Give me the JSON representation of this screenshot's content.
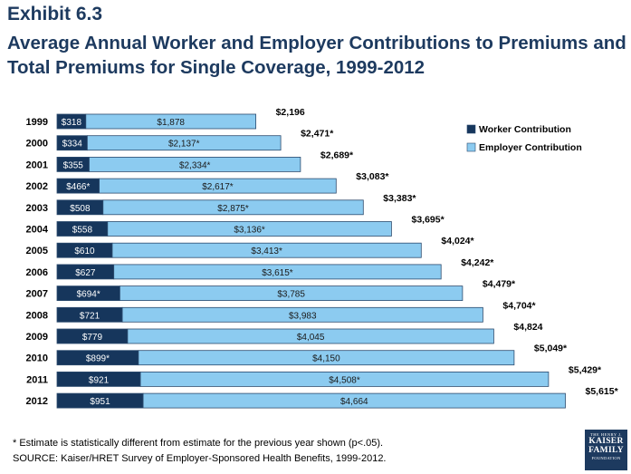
{
  "header": {
    "exhibit": "Exhibit 6.3",
    "title": "Average Annual Worker and Employer Contributions to Premiums and Total Premiums for Single Coverage, 1999-2012"
  },
  "footer": {
    "note": "* Estimate is statistically different from estimate for the previous year shown (p<.05).",
    "source": "SOURCE:  Kaiser/HRET Survey of Employer-Sponsored Health Benefits, 1999-2012."
  },
  "logo": {
    "line1": "THE HENRY J.",
    "line2a": "KAISER",
    "line2b": "FAMILY",
    "line3": "FOUNDATION"
  },
  "colors": {
    "worker": "#16365c",
    "employer": "#8ccbf0",
    "bar_outline": "#2c4b6e"
  },
  "chart_data": {
    "type": "bar",
    "orientation": "horizontal",
    "stacked": true,
    "categories": [
      "1999",
      "2000",
      "2001",
      "2002",
      "2003",
      "2004",
      "2005",
      "2006",
      "2007",
      "2008",
      "2009",
      "2010",
      "2011",
      "2012"
    ],
    "series": [
      {
        "name": "Worker Contribution",
        "values": [
          318,
          334,
          355,
          466,
          508,
          558,
          610,
          627,
          694,
          721,
          779,
          899,
          921,
          951
        ],
        "labels": [
          "$318",
          "$334",
          "$355",
          "$466*",
          "$508",
          "$558",
          "$610",
          "$627",
          "$694*",
          "$721",
          "$779",
          "$899*",
          "$921",
          "$951"
        ]
      },
      {
        "name": "Employer Contribution",
        "values": [
          1878,
          2137,
          2334,
          2617,
          2875,
          3136,
          3413,
          3615,
          3785,
          3983,
          4045,
          4150,
          4508,
          4664
        ],
        "labels": [
          "$1,878",
          "$2,137*",
          "$2,334*",
          "$2,617*",
          "$2,875*",
          "$3,136*",
          "$3,413*",
          "$3,615*",
          "$3,785",
          "$3,983",
          "$4,045",
          "$4,150",
          "$4,508*",
          "$4,664"
        ]
      }
    ],
    "totals": [
      2196,
      2471,
      2689,
      3083,
      3383,
      3695,
      4024,
      4242,
      4479,
      4704,
      4824,
      5049,
      5429,
      5615
    ],
    "total_labels": [
      "$2,196",
      "$2,471*",
      "$2,689*",
      "$3,083*",
      "$3,383*",
      "$3,695*",
      "$4,024*",
      "$4,242*",
      "$4,479*",
      "$4,704*",
      "$4,824",
      "$5,049*",
      "$5,429*",
      "$5,615*"
    ],
    "legend": "right"
  }
}
